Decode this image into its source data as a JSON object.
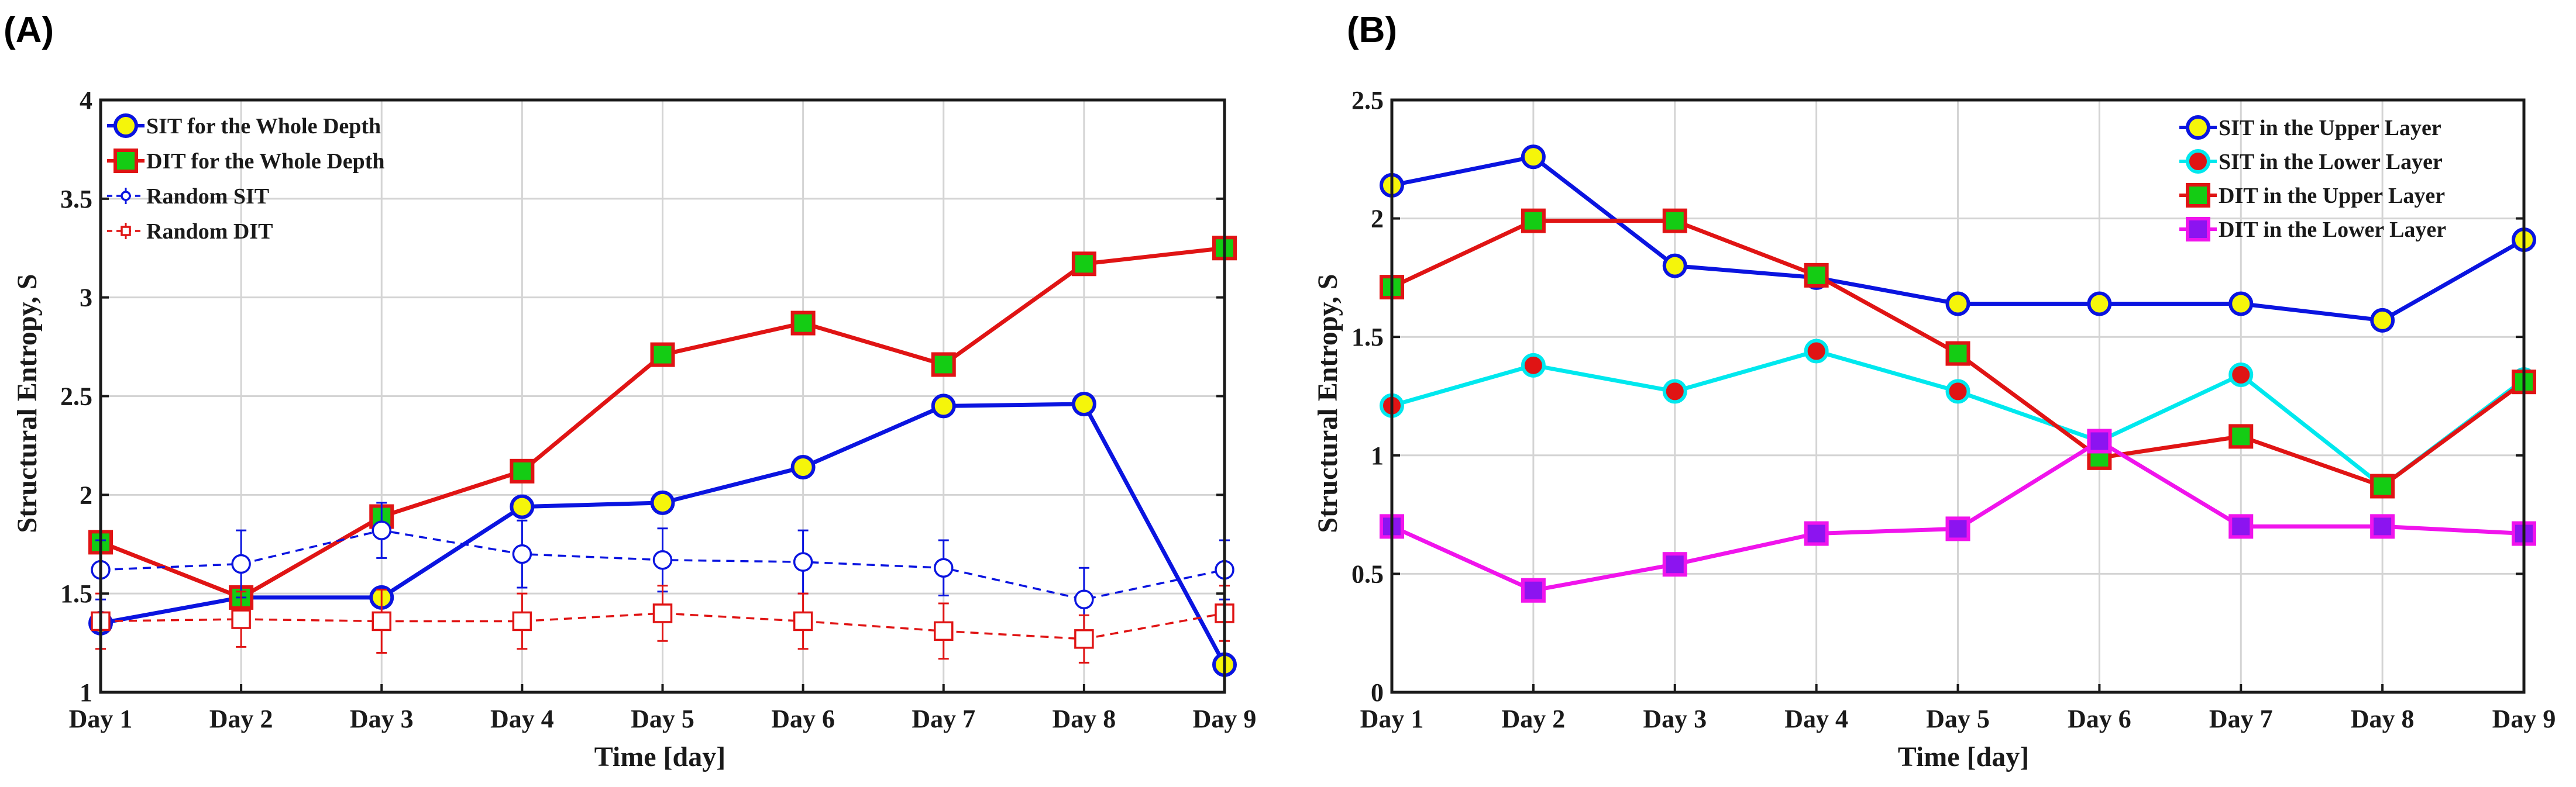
{
  "colors": {
    "blue": "#0a14e0",
    "red": "#e01414",
    "cyan": "#00e8ee",
    "magenta": "#f014ec",
    "yellow": "#f5f50a",
    "green": "#14cc14",
    "purple": "#8c14f0",
    "grid": "#d4d4d4"
  },
  "chart_data": [
    {
      "panel_label": "(A)",
      "type": "line",
      "categories": [
        "Day 1",
        "Day 2",
        "Day 3",
        "Day 4",
        "Day 5",
        "Day 6",
        "Day 7",
        "Day 8",
        "Day 9"
      ],
      "xlabel": "Time [day]",
      "ylabel": "Structural Entropy, S",
      "ylim": [
        1,
        4
      ],
      "yticks": [
        "1",
        "1.5",
        "2",
        "2.5",
        "3",
        "3.5",
        "4"
      ],
      "grid": true,
      "legend_position": "top-left",
      "series": [
        {
          "name": "SIT for the Whole Depth",
          "color": "blue",
          "marker": "circle",
          "marker_fill": "yellow",
          "style": "solid",
          "values": [
            1.35,
            1.48,
            1.48,
            1.94,
            1.96,
            2.14,
            2.45,
            2.46,
            1.14
          ]
        },
        {
          "name": "DIT for the Whole Depth",
          "color": "red",
          "marker": "square",
          "marker_fill": "green",
          "style": "solid",
          "values": [
            1.76,
            1.48,
            1.89,
            2.12,
            2.71,
            2.87,
            2.66,
            3.17,
            3.25
          ]
        },
        {
          "name": "Random SIT",
          "color": "blue",
          "marker": "open-circle",
          "style": "dashed",
          "values": [
            1.62,
            1.65,
            1.82,
            1.7,
            1.67,
            1.66,
            1.63,
            1.47,
            1.62
          ],
          "errors": [
            0.15,
            0.17,
            0.14,
            0.17,
            0.16,
            0.16,
            0.14,
            0.16,
            0.15
          ]
        },
        {
          "name": "Random DIT",
          "color": "red",
          "marker": "open-square",
          "style": "dashed",
          "values": [
            1.36,
            1.37,
            1.36,
            1.36,
            1.4,
            1.36,
            1.31,
            1.27,
            1.4
          ],
          "errors": [
            0.14,
            0.14,
            0.16,
            0.14,
            0.14,
            0.14,
            0.14,
            0.12,
            0.14
          ]
        }
      ]
    },
    {
      "panel_label": "(B)",
      "type": "line",
      "categories": [
        "Day 1",
        "Day 2",
        "Day 3",
        "Day 4",
        "Day 5",
        "Day 6",
        "Day 7",
        "Day 8",
        "Day 9"
      ],
      "xlabel": "Time [day]",
      "ylabel": "Structural Entropy, S",
      "ylim": [
        0,
        2.5
      ],
      "yticks": [
        "0",
        "0.5",
        "1",
        "1.5",
        "2",
        "2.5"
      ],
      "grid": true,
      "legend_position": "top-right",
      "series": [
        {
          "name": "SIT in the Upper Layer",
          "color": "blue",
          "marker": "circle",
          "marker_fill": "yellow",
          "style": "solid",
          "values": [
            2.14,
            2.26,
            1.8,
            1.75,
            1.64,
            1.64,
            1.64,
            1.57,
            1.91
          ]
        },
        {
          "name": "SIT in the Lower Layer",
          "color": "cyan",
          "marker": "circle",
          "marker_fill": "red",
          "style": "solid",
          "values": [
            1.21,
            1.38,
            1.27,
            1.44,
            1.27,
            1.06,
            1.34,
            0.87,
            1.32
          ]
        },
        {
          "name": "DIT in the Upper Layer",
          "color": "red",
          "marker": "square",
          "marker_fill": "green",
          "style": "solid",
          "values": [
            1.71,
            1.99,
            1.99,
            1.76,
            1.43,
            0.99,
            1.08,
            0.87,
            1.31
          ]
        },
        {
          "name": "DIT in the Lower Layer",
          "color": "magenta",
          "marker": "square",
          "marker_fill": "purple",
          "style": "solid",
          "values": [
            0.7,
            0.43,
            0.54,
            0.67,
            0.69,
            1.06,
            0.7,
            0.7,
            0.67
          ]
        }
      ]
    }
  ]
}
